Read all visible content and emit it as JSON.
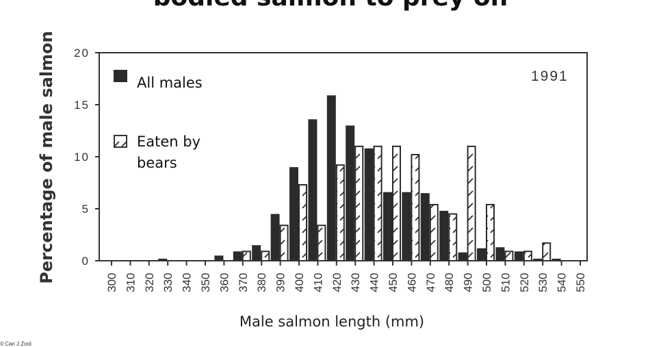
{
  "title": "bodied salmon to prey on",
  "footnote": "00 Can J Zool",
  "chart_data": {
    "type": "bar",
    "title": "bodied salmon to prey on",
    "annotation": "1991",
    "xlabel": "Male salmon length (mm)",
    "ylabel": "Percentage of male salmon",
    "ylim": [
      0,
      20
    ],
    "yticks": [
      "0",
      "5",
      "10",
      "15",
      "20"
    ],
    "ytick_values": [
      0,
      5,
      10,
      15,
      20
    ],
    "legend_position": "top-left",
    "categories": [
      "300",
      "310",
      "320",
      "330",
      "340",
      "350",
      "360",
      "370",
      "380",
      "390",
      "400",
      "410",
      "420",
      "430",
      "440",
      "450",
      "460",
      "470",
      "480",
      "490",
      "500",
      "510",
      "520",
      "530",
      "540",
      "550"
    ],
    "series": [
      {
        "name": "All males",
        "color": "#2b2b2e",
        "values": [
          0,
          0,
          0,
          0.2,
          0,
          0,
          0.5,
          0.9,
          1.5,
          4.5,
          9,
          13.6,
          15.9,
          13,
          10.8,
          6.6,
          6.6,
          6.5,
          4.8,
          0.8,
          1.2,
          1.3,
          0.9,
          0.2,
          0.2,
          0
        ]
      },
      {
        "name": "Eaten by bears",
        "color": "#ffffff",
        "pattern": "hatched",
        "values": [
          0,
          0,
          0,
          0,
          0,
          0,
          0,
          0.9,
          0.9,
          3.4,
          7.3,
          3.4,
          9.2,
          11,
          11,
          11,
          10.2,
          5.4,
          4.5,
          11,
          5.4,
          0.9,
          0.9,
          1.7,
          0,
          0
        ]
      }
    ],
    "legend": {
      "line1": "All males",
      "line2a": "Eaten by",
      "line2b": "bears"
    }
  }
}
